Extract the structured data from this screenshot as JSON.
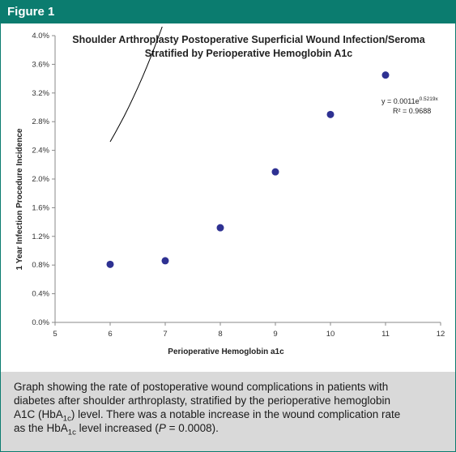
{
  "header": {
    "label": "Figure 1"
  },
  "colors": {
    "header_bg": "#0b7c6f",
    "caption_bg": "#d9d9d9",
    "marker": "#2e3192",
    "trendline": "#000000"
  },
  "chart_data": {
    "type": "scatter",
    "title_line1": "Shoulder Arthroplasty Postoperative Superficial Wound Infection/Seroma",
    "title_line2": "Stratified by Perioperative Hemoglobin A1c",
    "xlabel": "Perioperative Hemoglobin a1c",
    "ylabel": "1 Year Infection Procedure Incidence",
    "xlim": [
      5,
      12
    ],
    "ylim": [
      0,
      4.0
    ],
    "x_ticks": [
      "5",
      "6",
      "7",
      "8",
      "9",
      "10",
      "11",
      "12"
    ],
    "y_ticks": [
      "0.0%",
      "0.4%",
      "0.8%",
      "1.2%",
      "1.6%",
      "2.0%",
      "2.4%",
      "2.8%",
      "3.2%",
      "3.6%",
      "4.0%"
    ],
    "grid": false,
    "legend": "none",
    "points": {
      "x": [
        6,
        7,
        8,
        9,
        10,
        11
      ],
      "y": [
        0.81,
        0.86,
        1.32,
        2.1,
        2.9,
        3.45
      ]
    },
    "trendline": {
      "type": "exponential",
      "equation_prefix": "y = 0.0011e",
      "equation_exponent": "0.5219x",
      "r2_label": "R² = 0.9688",
      "coefficient": 0.0011,
      "rate": 0.5219,
      "x_range": [
        6,
        11
      ]
    }
  },
  "caption": {
    "line1": "Graph showing the rate of postoperative wound complications in patients with",
    "line2a": "diabetes after shoulder arthroplasty, stratified by the perioperative hemoglobin",
    "line3a": "A1C (HbA",
    "line3sub": "1c",
    "line3b": ") level. There was a notable increase in the wound complication rate",
    "line4a": "as the HbA",
    "line4sub": "1c",
    "line4b": " level increased (",
    "line4p": "P",
    "line4c": " = 0.0008)."
  }
}
